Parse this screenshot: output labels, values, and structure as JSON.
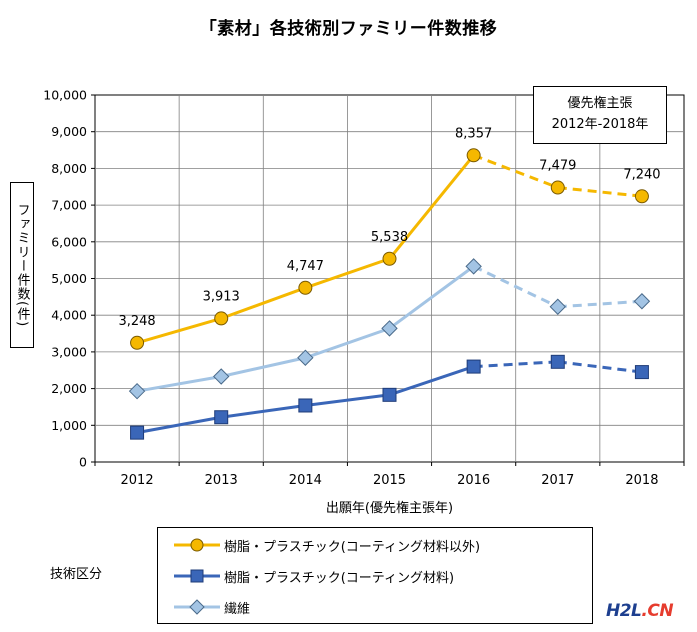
{
  "title": "「素材」各技術別ファミリー件数推移",
  "note": {
    "line1": "優先権主張",
    "line2": "2012年-2018年"
  },
  "legend_title": "技術区分",
  "watermark": {
    "part1": "H2L",
    "part2": ".CN"
  },
  "chart_data": {
    "type": "line",
    "title": "「素材」各技術別ファミリー件数推移",
    "xlabel": "出願年(優先権主張年)",
    "ylabel": "ファミリー件数(件)",
    "categories": [
      "2012",
      "2013",
      "2014",
      "2015",
      "2016",
      "2017",
      "2018"
    ],
    "ylim": [
      0,
      10000
    ],
    "ytick_labels": [
      "0",
      "1,000",
      "2,000",
      "3,000",
      "4,000",
      "5,000",
      "6,000",
      "7,000",
      "8,000",
      "9,000",
      "10,000"
    ],
    "grid": true,
    "legend_position": "bottom",
    "dashed_from_index": 4,
    "series": [
      {
        "name": "樹脂・プラスチック(コーティング材料以外)",
        "values": [
          3248,
          3913,
          4747,
          5538,
          8357,
          7479,
          7240
        ],
        "labels": [
          "3,248",
          "3,913",
          "4,747",
          "5,538",
          "8,357",
          "7,479",
          "7,240"
        ],
        "color": "#f5b800",
        "marker": "circle"
      },
      {
        "name": "樹脂・プラスチック(コーティング材料)",
        "values": [
          800,
          1220,
          1540,
          1830,
          2600,
          2730,
          2450
        ],
        "color": "#3a66b8",
        "marker": "square"
      },
      {
        "name": "繊維",
        "values": [
          1930,
          2330,
          2840,
          3640,
          5330,
          4230,
          4380
        ],
        "color": "#a3c4e4",
        "marker": "diamond"
      }
    ]
  }
}
